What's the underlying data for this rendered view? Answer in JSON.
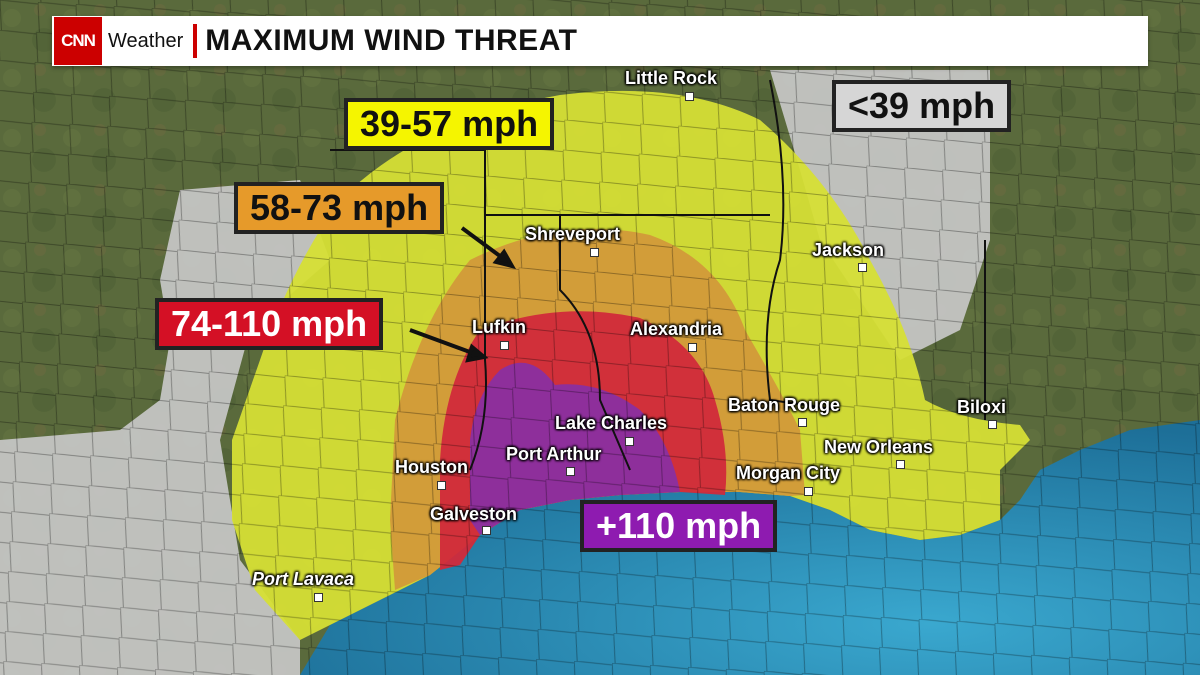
{
  "header": {
    "logo": "CNN",
    "brand": "Weather",
    "title": "MAXIMUM WIND THREAT"
  },
  "legend": {
    "tropical_storm": {
      "label": "39-57 mph",
      "color": "#f5f500"
    },
    "strong_storm": {
      "label": "58-73 mph",
      "color": "#e69a2a"
    },
    "hurricane": {
      "label": "74-110 mph",
      "color": "#d41025"
    },
    "major": {
      "label": "+110 mph",
      "color": "#8e1bb0"
    },
    "low": {
      "label": "<39 mph",
      "color": "#cfcfcf"
    }
  },
  "zone_colors": {
    "gray": "#c9c9c9",
    "yellow": "#d9e23a",
    "orange": "#d49a3a",
    "red": "#d22a3a",
    "purple": "#8a2fa0",
    "ocean": "#2a8fb8",
    "land": "#5a6b3c"
  },
  "cities": {
    "little_rock": "Little Rock",
    "shreveport": "Shreveport",
    "jackson": "Jackson",
    "lufkin": "Lufkin",
    "alexandria": "Alexandria",
    "baton_rouge": "Baton Rouge",
    "biloxi": "Biloxi",
    "lake_charles": "Lake Charles",
    "port_arthur": "Port Arthur",
    "new_orleans": "New Orleans",
    "houston": "Houston",
    "morgan_city": "Morgan City",
    "galveston": "Galveston",
    "port_lavaca": "Port Lavaca"
  }
}
